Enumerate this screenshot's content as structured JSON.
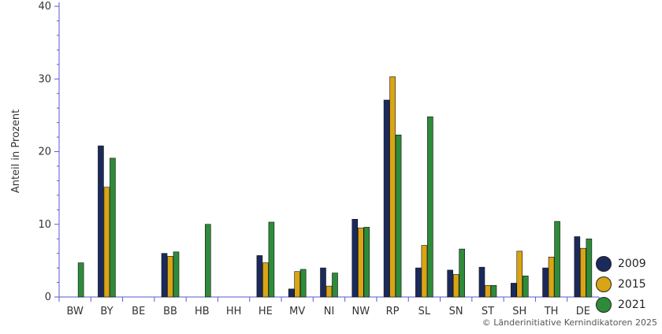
{
  "chart_data": {
    "type": "bar",
    "title": "",
    "xlabel": "",
    "ylabel": "Anteil in Prozent",
    "ylim": [
      0,
      40
    ],
    "yticks": [
      0,
      10,
      20,
      30,
      40
    ],
    "grid": false,
    "legend_position": "bottom-right",
    "categories": [
      "BW",
      "BY",
      "BE",
      "BB",
      "HB",
      "HH",
      "HE",
      "MV",
      "NI",
      "NW",
      "RP",
      "SL",
      "SN",
      "ST",
      "SH",
      "TH",
      "DE"
    ],
    "series": [
      {
        "name": "2009",
        "color": "#1b2a5c",
        "values": [
          null,
          20.8,
          null,
          6.0,
          null,
          null,
          5.7,
          1.1,
          4.0,
          10.7,
          27.1,
          4.0,
          3.7,
          4.1,
          1.9,
          4.0,
          8.3
        ]
      },
      {
        "name": "2015",
        "color": "#d9a514",
        "values": [
          null,
          15.1,
          null,
          5.6,
          null,
          null,
          4.7,
          3.5,
          1.5,
          9.5,
          30.3,
          7.1,
          3.1,
          1.6,
          6.3,
          5.5,
          6.7
        ]
      },
      {
        "name": "2021",
        "color": "#2e8b3a",
        "values": [
          4.7,
          19.1,
          null,
          6.2,
          10.0,
          null,
          10.3,
          3.8,
          3.3,
          9.6,
          22.3,
          24.8,
          6.6,
          1.6,
          2.9,
          10.4,
          8.0
        ]
      }
    ]
  },
  "credit": "© Länderinitiative Kernindikatoren 2025"
}
